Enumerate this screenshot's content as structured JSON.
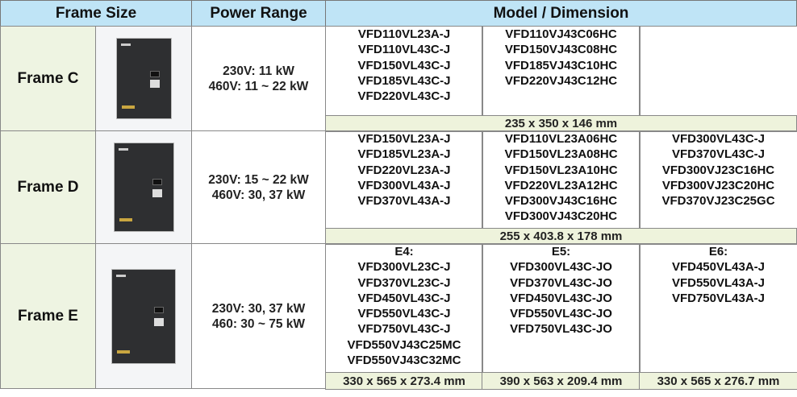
{
  "header": {
    "frame_size": "Frame Size",
    "power_range": "Power Range",
    "model_dimension": "Model / Dimension"
  },
  "rows": [
    {
      "frame": "Frame C",
      "image": "drive-unit-photo",
      "power": [
        "230V: 11 kW",
        "460V: 11 ~ 22 kW"
      ],
      "models": [
        [
          "VFD110VL23A-J",
          "VFD110VL43C-J",
          "VFD150VL43C-J",
          "VFD185VL43C-J",
          "VFD220VL43C-J"
        ],
        [
          "VFD110VJ43C06HC",
          "VFD150VJ43C08HC",
          "VFD185VJ43C10HC",
          "VFD220VJ43C12HC"
        ],
        []
      ],
      "dimensions": [
        "235 x 350 x 146 mm"
      ]
    },
    {
      "frame": "Frame D",
      "image": "drive-unit-photo",
      "power": [
        "230V: 15 ~ 22 kW",
        "460V: 30, 37 kW"
      ],
      "models": [
        [
          "VFD150VL23A-J",
          "VFD185VL23A-J",
          "VFD220VL23A-J",
          "VFD300VL43A-J",
          "VFD370VL43A-J"
        ],
        [
          "VFD110VL23A06HC",
          "VFD150VL23A08HC",
          "VFD150VL23A10HC",
          "VFD220VL23A12HC",
          "VFD300VJ43C16HC",
          "VFD300VJ43C20HC"
        ],
        [
          "VFD300VL43C-J",
          "VFD370VL43C-J",
          "VFD300VJ23C16HC",
          "VFD300VJ23C20HC",
          "VFD370VJ23C25GC"
        ]
      ],
      "dimensions": [
        "255 x 403.8 x 178 mm"
      ]
    },
    {
      "frame": "Frame E",
      "image": "drive-unit-photo",
      "power": [
        "230V: 30, 37 kW",
        "460: 30 ~ 75 kW"
      ],
      "models": [
        [
          "E4:",
          "VFD300VL23C-J",
          "VFD370VL23C-J",
          "VFD450VL43C-J",
          "VFD550VL43C-J",
          "VFD750VL43C-J",
          "VFD550VJ43C25MC",
          "VFD550VJ43C32MC"
        ],
        [
          "E5:",
          "VFD300VL43C-JO",
          "VFD370VL43C-JO",
          "VFD450VL43C-JO",
          "VFD550VL43C-JO",
          "VFD750VL43C-JO"
        ],
        [
          "E6:",
          "VFD450VL43A-J",
          "VFD550VL43A-J",
          "VFD750VL43A-J"
        ]
      ],
      "dimensions": [
        "330 x 565 x 273.4 mm",
        "390 x 563 x 209.4 mm",
        "330 x 565 x 276.7 mm"
      ]
    }
  ],
  "colors": {
    "header_bg": "#bfe4f6",
    "frame_bg": "#eef4e2",
    "dimension_bg": "#eef3dc"
  }
}
